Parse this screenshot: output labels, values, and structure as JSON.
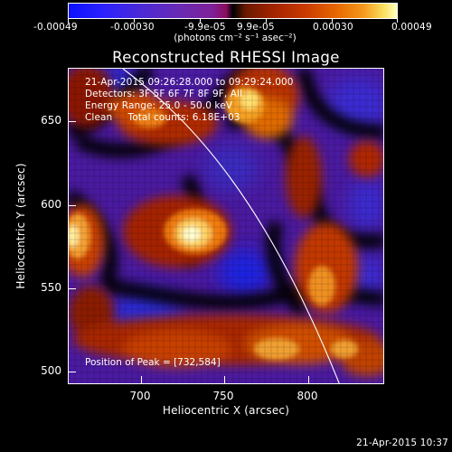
{
  "colorbar": {
    "tick_labels": [
      "-0.00049",
      "-0.00030",
      "-9.9e-05",
      "9.9e-05",
      "0.00030",
      "0.00049"
    ],
    "units": "(photons cm⁻² s⁻¹ asec⁻²)",
    "colors": [
      "#0a10ff",
      "#4b2ad6",
      "#7f2097",
      "#000000",
      "#a12200",
      "#e86a00",
      "#fbe05f",
      "#ffffbf"
    ]
  },
  "title": "Reconstructed RHESSI Image",
  "info": {
    "line1": "21-Apr-2015 09:26:28.000 to 09:29:24.000",
    "line2": "Detectors: 3F 5F 6F 7F 8F 9F, All",
    "line3": "Energy Range: 25.0 - 50.0 keV",
    "line4": "Clean     Total counts: 6.18E+03"
  },
  "peak": "Position of Peak = [732,584]",
  "axes": {
    "xlabel": "Heliocentric X (arcsec)",
    "ylabel": "Heliocentric Y (arcsec)",
    "x_ticks": [
      "700",
      "750",
      "800"
    ],
    "y_ticks": [
      "500",
      "550",
      "600",
      "650"
    ],
    "x_range": [
      660,
      850
    ],
    "y_range": [
      490,
      680
    ]
  },
  "timestamp": "21-Apr-2015 10:37"
}
